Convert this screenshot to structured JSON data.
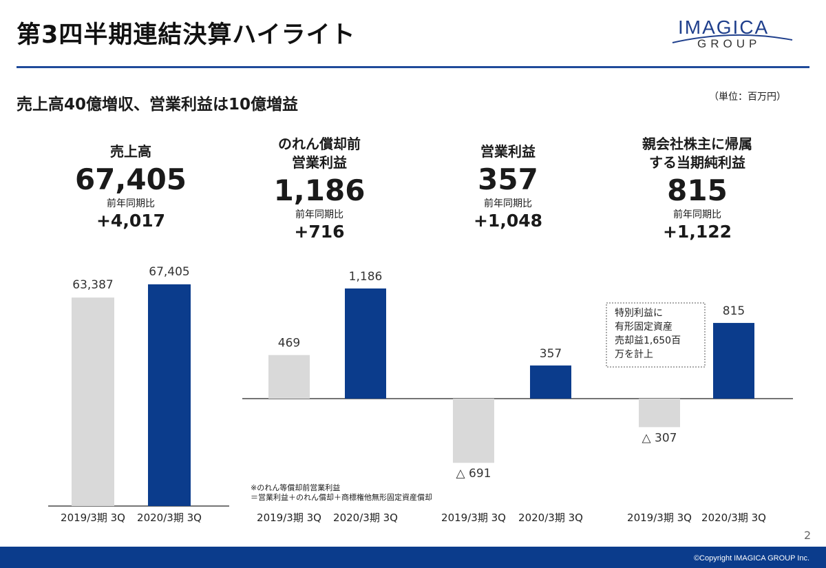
{
  "page": {
    "title": "第3四半期連結決算ハイライト",
    "subtitle": "売上高40億増収、営業利益は10億増益",
    "unit": "（単位：百万円）",
    "page_number": "2",
    "copyright": "©Copyright IMAGICA GROUP Inc.",
    "logo": {
      "main": "IMAGICA",
      "sub": "GROUP"
    },
    "footnote": [
      "※のれん等償却前営業利益",
      "＝営業利益＋のれん償却＋商標権他無形固定資産償却"
    ],
    "callout": [
      "特別利益に",
      "有形固定資産",
      "売却益1,650百",
      "万を計上"
    ]
  },
  "kpis": [
    {
      "label_lines": [
        "売上高"
      ],
      "value": "67,405",
      "cmp_label": "前年同期比",
      "cmp_value": "+4,017"
    },
    {
      "label_lines": [
        "のれん償却前",
        "営業利益"
      ],
      "value": "1,186",
      "cmp_label": "前年同期比",
      "cmp_value": "+716"
    },
    {
      "label_lines": [
        "営業利益"
      ],
      "value": "357",
      "cmp_label": "前年同期比",
      "cmp_value": "+1,048"
    },
    {
      "label_lines": [
        "親会社株主に帰属",
        "する当期純利益"
      ],
      "value": "815",
      "cmp_label": "前年同期比",
      "cmp_value": "+1,122"
    }
  ],
  "colors": {
    "prior": "#d9d9d9",
    "current": "#0b3c8c",
    "accent": "#1f4a9a"
  },
  "chart_data": [
    {
      "type": "bar",
      "metric": "売上高",
      "categories": [
        "2019/3期 3Q",
        "2020/3期 3Q"
      ],
      "values": [
        63387,
        67405
      ],
      "labels": [
        "63,387",
        "67,405"
      ]
    },
    {
      "type": "bar",
      "metric": "のれん償却前営業利益",
      "categories": [
        "2019/3期 3Q",
        "2020/3期 3Q"
      ],
      "values": [
        469,
        1186
      ],
      "labels": [
        "469",
        "1,186"
      ]
    },
    {
      "type": "bar",
      "metric": "営業利益",
      "categories": [
        "2019/3期 3Q",
        "2020/3期 3Q"
      ],
      "values": [
        -691,
        357
      ],
      "labels": [
        "△ 691",
        "357"
      ]
    },
    {
      "type": "bar",
      "metric": "親会社株主に帰属する当期純利益",
      "categories": [
        "2019/3期 3Q",
        "2020/3期 3Q"
      ],
      "values": [
        -307,
        815
      ],
      "labels": [
        "△ 307",
        "815"
      ]
    }
  ]
}
